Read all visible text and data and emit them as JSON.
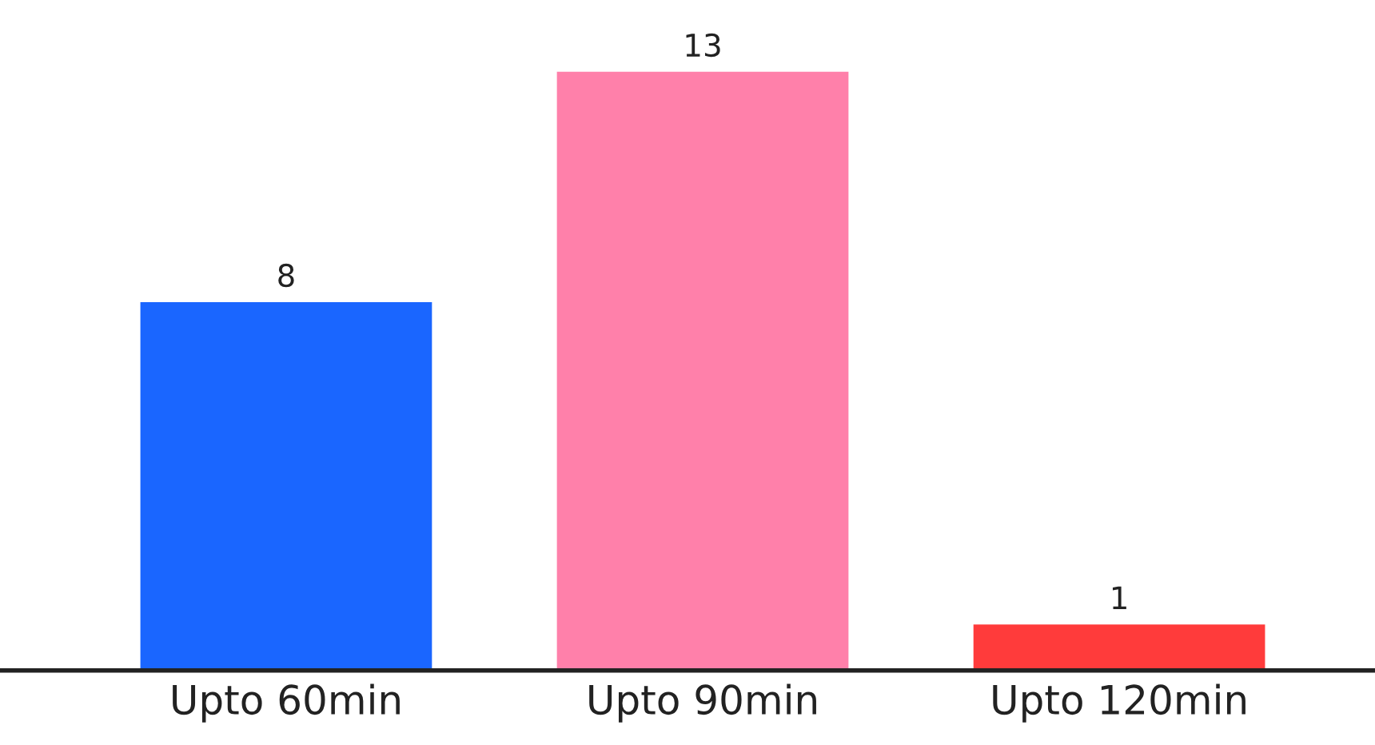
{
  "chart_data": {
    "type": "bar",
    "categories": [
      "Upto 60min",
      "Upto 90min",
      "Upto 120min"
    ],
    "values": [
      8,
      13,
      1
    ],
    "colors": [
      "#1a66ff",
      "#ff80aa",
      "#ff3b3b"
    ],
    "data_labels": true
  }
}
